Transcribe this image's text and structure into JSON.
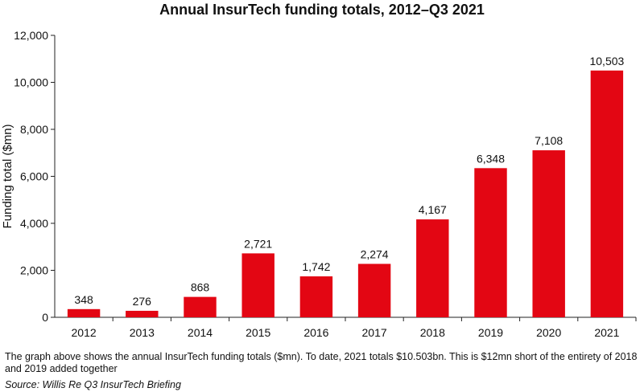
{
  "chart_data": {
    "type": "bar",
    "title": "Annual InsurTech funding totals, 2012–Q3 2021",
    "xlabel": "",
    "ylabel": "Funding total ($mn)",
    "ylim": [
      0,
      12000
    ],
    "yticks": [
      0,
      2000,
      4000,
      6000,
      8000,
      10000,
      12000
    ],
    "ytick_labels": [
      "0",
      "2,000",
      "4,000",
      "6,000",
      "8,000",
      "10,000",
      "12,000"
    ],
    "categories": [
      "2012",
      "2013",
      "2014",
      "2015",
      "2016",
      "2017",
      "2018",
      "2019",
      "2020",
      "2021"
    ],
    "values": [
      348,
      276,
      868,
      2721,
      1742,
      2274,
      4167,
      6348,
      7108,
      10503
    ],
    "data_labels": [
      "348",
      "276",
      "868",
      "2,721",
      "1,742",
      "2,274",
      "4,167",
      "6,348",
      "7,108",
      "10,503"
    ],
    "bar_color": "#e30613",
    "grid": false
  },
  "caption": "The graph above shows the annual InsurTech funding totals ($mn). To date, 2021 totals $10.503bn. This is $12mn short of the entirety of 2018 and 2019 added together",
  "source": "Source: Willis Re Q3 InsurTech Briefing"
}
